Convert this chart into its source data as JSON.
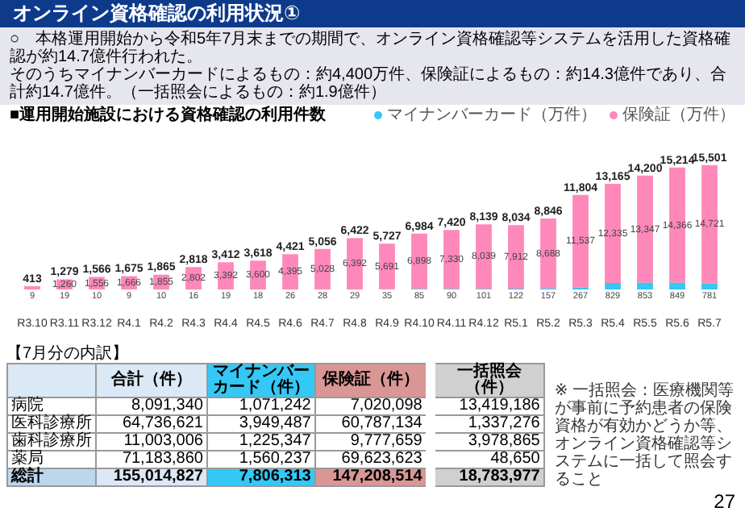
{
  "chart_data": [
    {
      "type": "bar",
      "title": "オンライン資格確認の利用状況①",
      "subtitle": "○　本格運用開始から令和5年7月末までの期間で、オンライン資格確認等システムを活用した資格確認が約14.7億件行われた。",
      "annotations": [
        "そのうちマイナンバーカードによるもの：約4,400万件、保険証によるもの：約14.3億件であり、合計約14.7億件。",
        "（一括照会によるもの：約1.9億件）",
        "■運用開始施設における資格確認の利用件数",
        "27"
      ],
      "categories": [
        "R3.10",
        "R3.11",
        "R3.12",
        "R4.1",
        "R4.2",
        "R4.3",
        "R4.4",
        "R4.5",
        "R4.6",
        "R4.7",
        "R4.8",
        "R4.9",
        "R4.10",
        "R4.11",
        "R4.12",
        "R5.1",
        "R5.2",
        "R5.3",
        "R5.4",
        "R5.5",
        "R5.6",
        "R5.7"
      ],
      "stacked": true,
      "legend": "top right",
      "series": [
        {
          "name": "マイナンバーカード（万件）",
          "color": "#33c8f5",
          "values": [
            9,
            19,
            10,
            9,
            10,
            16,
            19,
            18,
            26,
            28,
            29,
            35,
            85,
            90,
            101,
            122,
            157,
            267,
            829,
            853,
            849,
            781
          ]
        },
        {
          "name": "保険証（万件）",
          "color": "#ff88bb",
          "values": [
            404,
            1260,
            1556,
            1666,
            1855,
            2802,
            3392,
            3600,
            4395,
            5028,
            6392,
            5691,
            6898,
            7330,
            8039,
            7912,
            8688,
            11537,
            12335,
            13347,
            14366,
            14721
          ],
          "value_labels": [
            null,
            "1,260",
            "1,556",
            "1,666",
            "1,855",
            "2,802",
            "3,392",
            "3,600",
            "4,395",
            "5,028",
            "6,392",
            "5,691",
            "6,898",
            "7,330",
            "8,039",
            "7,912",
            "8,688",
            "11,537",
            "12,335",
            "13,347",
            "14,366",
            "14,721"
          ]
        }
      ],
      "totals": [
        "413",
        "1,279",
        "1,566",
        "1,675",
        "1,865",
        "2,818",
        "3,412",
        "3,618",
        "4,421",
        "5,056",
        "6,422",
        "5,727",
        "6,984",
        "7,420",
        "8,139",
        "8,034",
        "8,846",
        "11,804",
        "13,165",
        "14,200",
        "15,214",
        "15,501"
      ],
      "data_labels": true
    },
    {
      "type": "other",
      "title": "【7月分の内訳】",
      "categories": [
        "合計（件）",
        "マイナンバーカード（件）",
        "保険証（件）",
        "一括照会（件）"
      ],
      "y_categories": [
        "病院",
        "医科診療所",
        "歯科診療所",
        "薬局",
        "総計"
      ],
      "cell_labels": [
        [
          "8,091,340",
          "1,071,242",
          "7,020,098",
          "13,419,186"
        ],
        [
          "64,736,621",
          "3,949,487",
          "60,787,134",
          "1,337,276"
        ],
        [
          "11,003,006",
          "1,225,347",
          "9,777,659",
          "3,978,865"
        ],
        [
          "71,183,860",
          "1,560,237",
          "69,623,623",
          "48,650"
        ],
        [
          "155,014,827",
          "7,806,313",
          "147,208,514",
          "18,783,977"
        ]
      ],
      "annotations": [
        "※ 一括照会：医療機関等が事前に予約患者の保険資格が有効かどうか等、オンライン資格確認等システムに一括して照会すること"
      ]
    }
  ]
}
